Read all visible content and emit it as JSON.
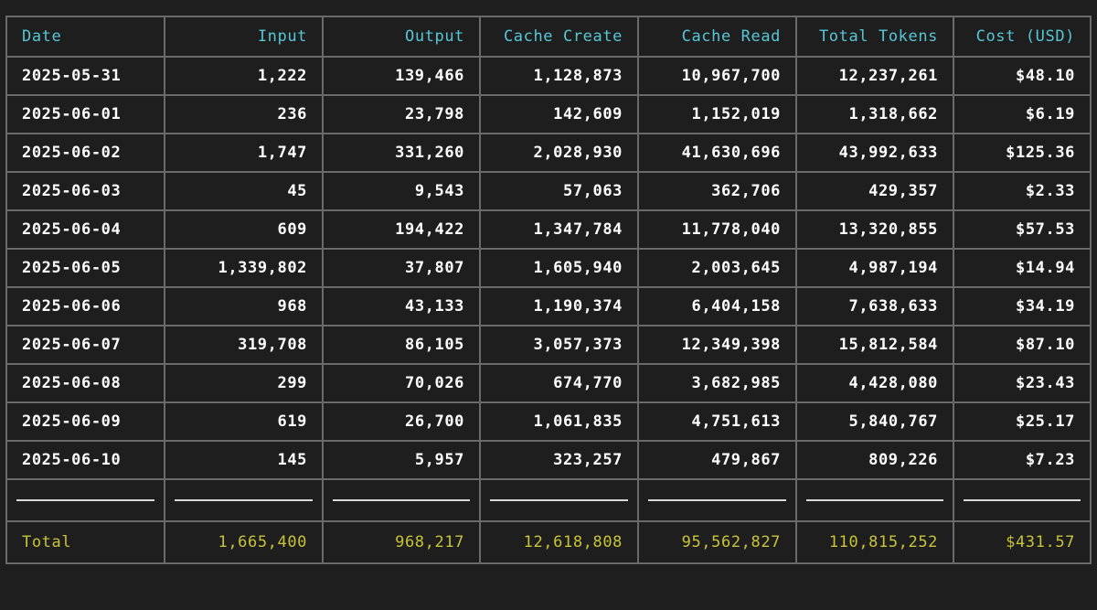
{
  "table": {
    "headers": [
      "Date",
      "Input",
      "Output",
      "Cache Create",
      "Cache Read",
      "Total Tokens",
      "Cost (USD)"
    ],
    "rows": [
      [
        "2025-05-31",
        "1,222",
        "139,466",
        "1,128,873",
        "10,967,700",
        "12,237,261",
        "$48.10"
      ],
      [
        "2025-06-01",
        "236",
        "23,798",
        "142,609",
        "1,152,019",
        "1,318,662",
        "$6.19"
      ],
      [
        "2025-06-02",
        "1,747",
        "331,260",
        "2,028,930",
        "41,630,696",
        "43,992,633",
        "$125.36"
      ],
      [
        "2025-06-03",
        "45",
        "9,543",
        "57,063",
        "362,706",
        "429,357",
        "$2.33"
      ],
      [
        "2025-06-04",
        "609",
        "194,422",
        "1,347,784",
        "11,778,040",
        "13,320,855",
        "$57.53"
      ],
      [
        "2025-06-05",
        "1,339,802",
        "37,807",
        "1,605,940",
        "2,003,645",
        "4,987,194",
        "$14.94"
      ],
      [
        "2025-06-06",
        "968",
        "43,133",
        "1,190,374",
        "6,404,158",
        "7,638,633",
        "$34.19"
      ],
      [
        "2025-06-07",
        "319,708",
        "86,105",
        "3,057,373",
        "12,349,398",
        "15,812,584",
        "$87.10"
      ],
      [
        "2025-06-08",
        "299",
        "70,026",
        "674,770",
        "3,682,985",
        "4,428,080",
        "$23.43"
      ],
      [
        "2025-06-09",
        "619",
        "26,700",
        "1,061,835",
        "4,751,613",
        "5,840,767",
        "$25.17"
      ],
      [
        "2025-06-10",
        "145",
        "5,957",
        "323,257",
        "479,867",
        "809,226",
        "$7.23"
      ]
    ],
    "total": [
      "Total",
      "1,665,400",
      "968,217",
      "12,618,808",
      "95,562,827",
      "110,815,252",
      "$431.57"
    ]
  },
  "colors": {
    "background": "#1e1e1e",
    "border": "#6a6a6a",
    "header_text": "#56c7d6",
    "body_text": "#ffffff",
    "total_text": "#c9c437"
  }
}
